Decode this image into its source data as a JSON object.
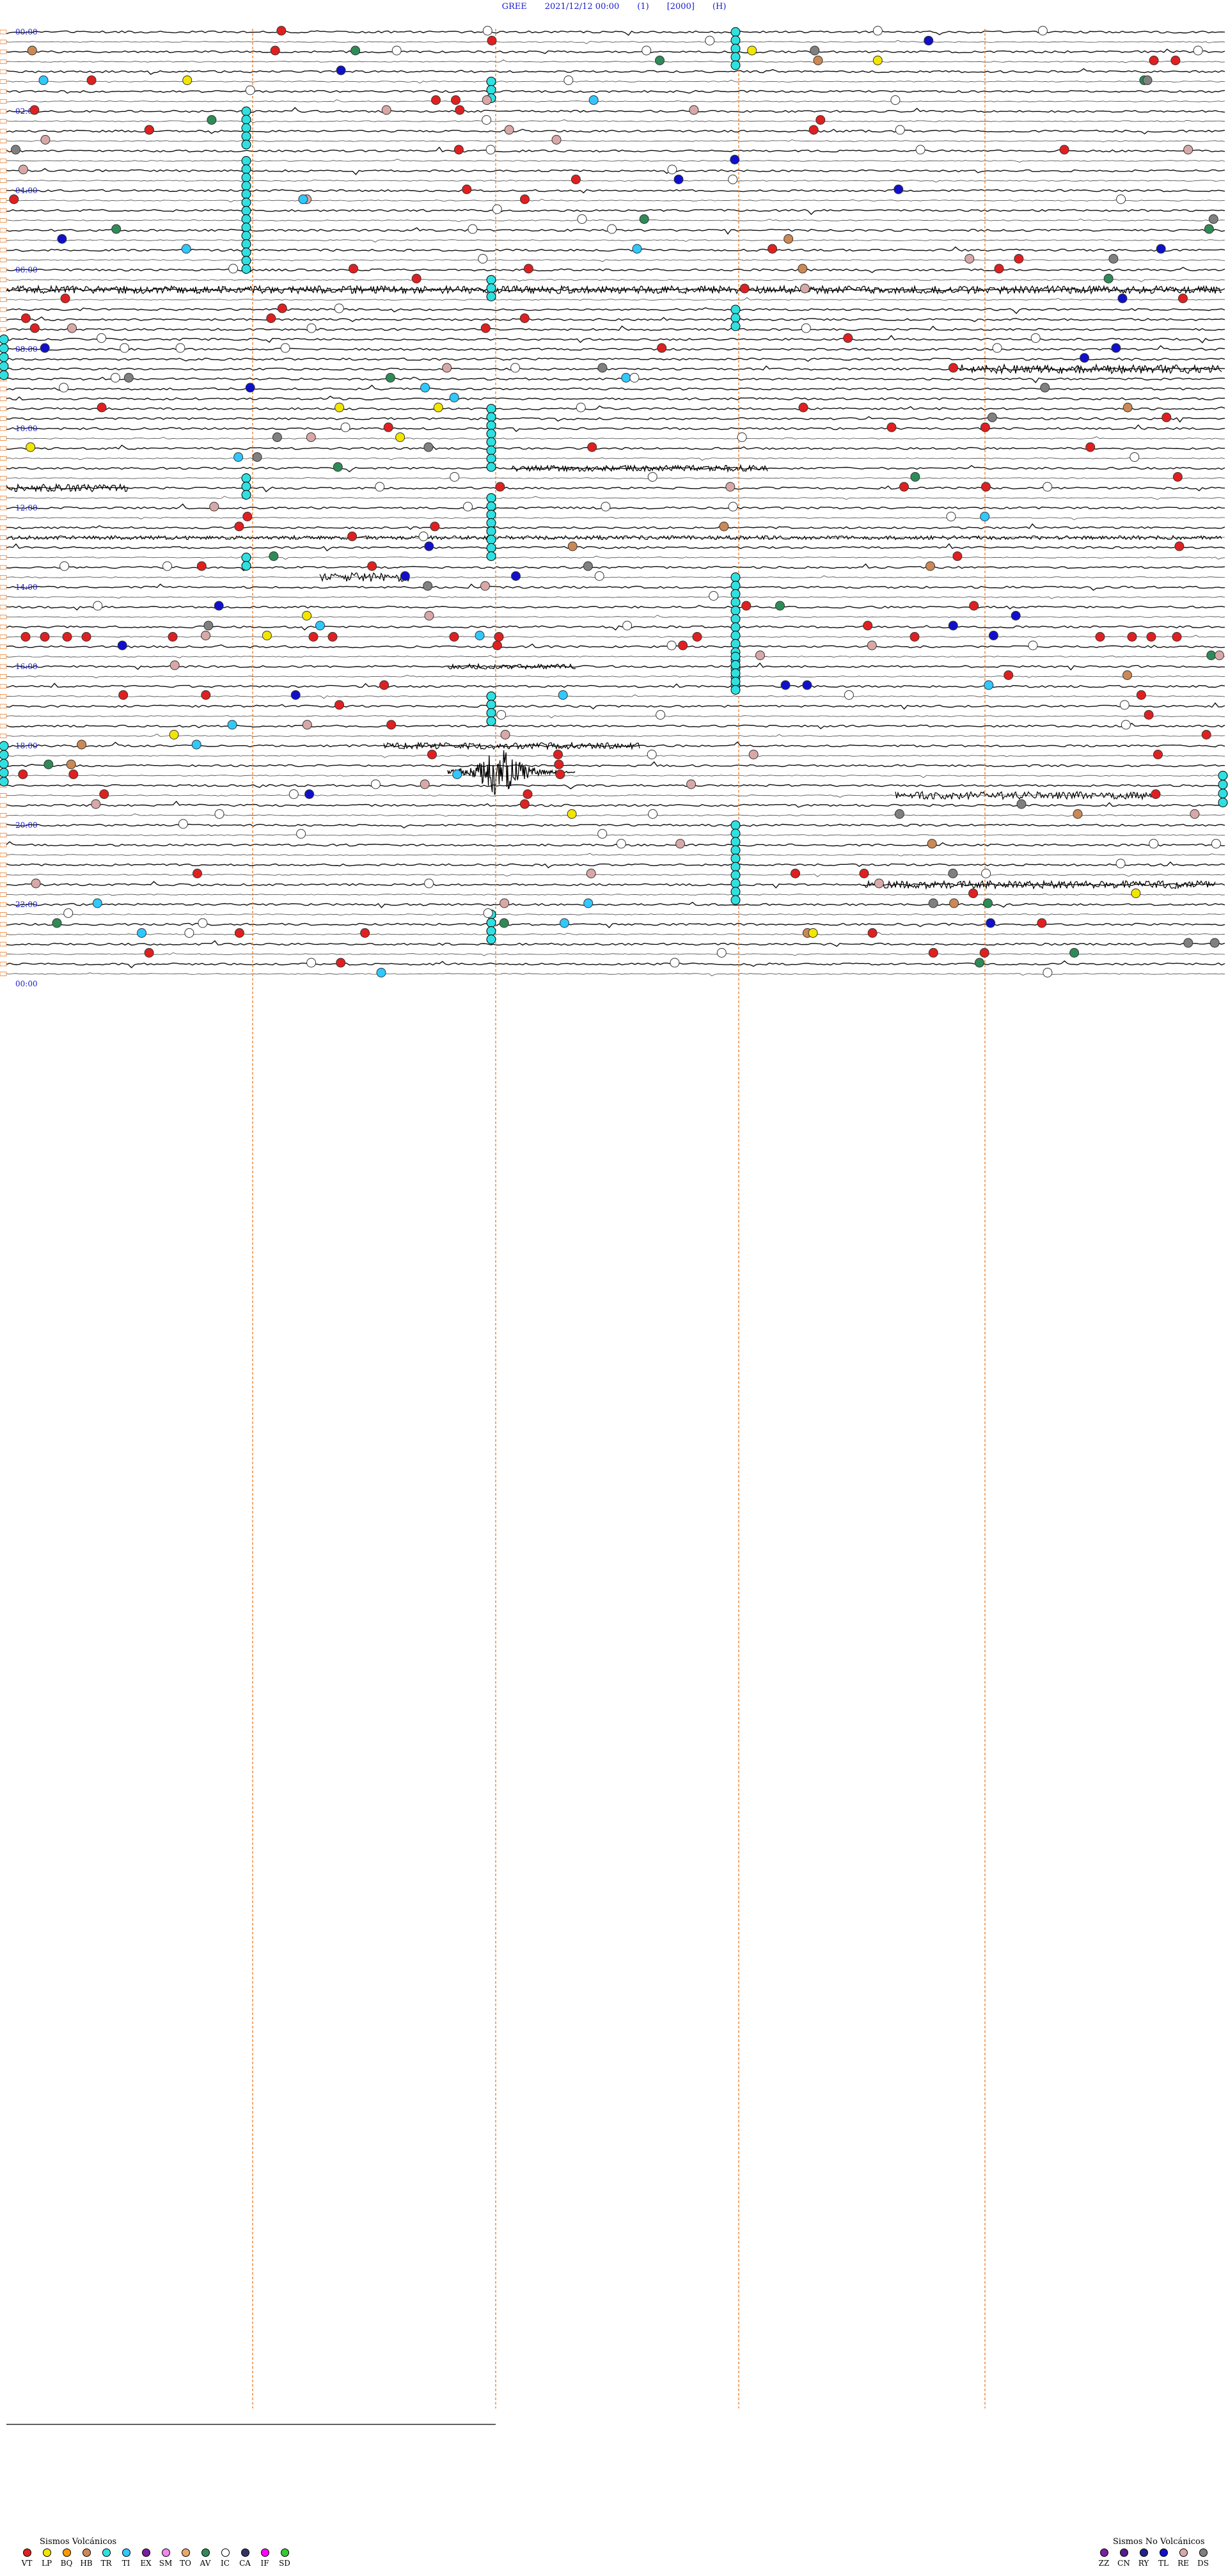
{
  "header": {
    "station": "GREE",
    "datetime": "2021/12/12 00:00",
    "channel": "(1)",
    "gain": "[2000]",
    "units": "(H)"
  },
  "chart_data": {
    "type": "helicorder",
    "hour_labels": [
      "00:00",
      "02:00",
      "04:00",
      "06:00",
      "08:00",
      "10:00",
      "12:00",
      "14:00",
      "16:00",
      "18:00",
      "20:00",
      "22:00",
      "00:00"
    ],
    "minute_markers": [
      "20",
      "40"
    ],
    "lines_per_hour": 4,
    "total_lines": 96,
    "event_colors": {
      "VT": "#e02020",
      "LP": "#f2e600",
      "BQ": "#ff9900",
      "HB": "#cc8855",
      "TR": "#30e0e0",
      "TI": "#30c8ff",
      "EX": "#7a1fa0",
      "SM": "#ee88ee",
      "TO": "#e8a868",
      "AV": "#2e8b57",
      "IC": "#ffffff",
      "CA": "#333366",
      "IF": "#ff00ff",
      "SD": "#33cc33",
      "ZZ": "#7a1fa0",
      "CN": "#551a8b",
      "RY": "#22228b",
      "TL": "#1010cc",
      "RE": "#d8a8a8",
      "DS": "#808080"
    }
  },
  "legend": {
    "volcanic_title": "Sismos Volcánicos",
    "volcanic": [
      {
        "code": "VT",
        "color": "#e02020"
      },
      {
        "code": "LP",
        "color": "#f2e600"
      },
      {
        "code": "BQ",
        "color": "#ff9900"
      },
      {
        "code": "HB",
        "color": "#cc8855"
      },
      {
        "code": "TR",
        "color": "#30e0e0"
      },
      {
        "code": "TI",
        "color": "#30c8ff"
      },
      {
        "code": "EX",
        "color": "#7a1fa0"
      },
      {
        "code": "SM",
        "color": "#ee88ee"
      },
      {
        "code": "TO",
        "color": "#e8a868"
      },
      {
        "code": "AV",
        "color": "#2e8b57"
      },
      {
        "code": "IC",
        "color": "#ffffff"
      },
      {
        "code": "CA",
        "color": "#333366"
      },
      {
        "code": "IF",
        "color": "#ff00ff"
      },
      {
        "code": "SD",
        "color": "#33cc33"
      }
    ],
    "nonvolcanic_title": "Sismos No Volcánicos",
    "nonvolcanic": [
      {
        "code": "ZZ",
        "color": "#7a1fa0"
      },
      {
        "code": "CN",
        "color": "#551a8b"
      },
      {
        "code": "RY",
        "color": "#22228b"
      },
      {
        "code": "TL",
        "color": "#1010cc"
      },
      {
        "code": "RE",
        "color": "#d8a8a8"
      },
      {
        "code": "DS",
        "color": "#808080"
      }
    ]
  }
}
